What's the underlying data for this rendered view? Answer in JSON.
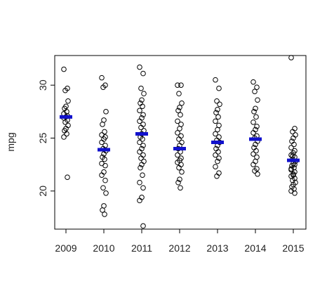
{
  "chart_data": {
    "type": "scatter",
    "title": "",
    "xlabel": "",
    "ylabel": "mpg",
    "categories": [
      "2009",
      "2010",
      "2011",
      "2012",
      "2013",
      "2014",
      "2015"
    ],
    "ylim": [
      16.4,
      32.8
    ],
    "yticks": [
      20,
      25,
      30
    ],
    "grid": false,
    "mean_color": "#1111cc",
    "point_color": "#000000",
    "means": [
      27.0,
      23.9,
      25.4,
      24.0,
      24.6,
      24.9,
      22.9
    ],
    "points": [
      [
        31.5,
        29.7,
        29.5,
        28.5,
        28.0,
        27.8,
        27.5,
        27.3,
        27.1,
        27.0,
        26.9,
        26.7,
        26.5,
        26.2,
        25.9,
        25.7,
        25.4,
        25.1,
        21.3
      ],
      [
        30.7,
        30.0,
        29.8,
        27.5,
        26.7,
        26.3,
        25.6,
        25.3,
        25.1,
        24.9,
        24.6,
        24.3,
        24.0,
        23.8,
        23.5,
        23.2,
        23.0,
        22.6,
        22.4,
        21.8,
        21.5,
        21.0,
        20.3,
        19.8,
        18.6,
        18.2,
        17.8
      ],
      [
        31.7,
        31.1,
        29.7,
        29.2,
        28.6,
        28.3,
        28.0,
        27.6,
        27.2,
        26.9,
        26.6,
        26.3,
        26.0,
        25.7,
        25.4,
        25.1,
        24.9,
        24.6,
        24.3,
        24.0,
        23.7,
        23.4,
        23.1,
        22.8,
        22.5,
        22.2,
        21.5,
        20.8,
        20.3,
        19.4,
        19.1,
        16.7
      ],
      [
        30.0,
        30.0,
        29.2,
        28.3,
        27.9,
        27.6,
        27.2,
        26.6,
        26.3,
        25.9,
        25.5,
        25.2,
        24.9,
        24.6,
        24.3,
        24.0,
        23.7,
        23.4,
        23.1,
        22.9,
        22.7,
        22.5,
        22.2,
        21.8,
        21.1,
        20.8,
        20.3
      ],
      [
        30.5,
        29.7,
        28.5,
        28.2,
        27.7,
        27.4,
        27.0,
        26.6,
        26.2,
        25.8,
        25.4,
        25.1,
        24.8,
        24.6,
        24.3,
        24.0,
        23.7,
        23.4,
        23.1,
        22.8,
        22.3,
        21.7,
        21.4
      ],
      [
        30.3,
        29.8,
        29.4,
        28.6,
        27.8,
        27.5,
        27.0,
        26.5,
        26.1,
        25.8,
        25.5,
        25.2,
        25.0,
        24.7,
        24.4,
        24.1,
        23.8,
        23.5,
        23.2,
        22.8,
        22.5,
        22.1,
        21.9,
        21.6
      ],
      [
        32.6,
        25.9,
        25.6,
        25.3,
        25.0,
        24.7,
        24.4,
        24.1,
        23.8,
        23.6,
        23.4,
        23.2,
        23.0,
        22.8,
        22.6,
        22.4,
        22.2,
        22.0,
        21.8,
        21.6,
        21.4,
        21.2,
        21.0,
        20.8,
        20.6,
        20.4,
        20.2,
        20.0,
        19.8,
        21.5,
        22.1,
        22.5,
        23.3
      ]
    ]
  }
}
